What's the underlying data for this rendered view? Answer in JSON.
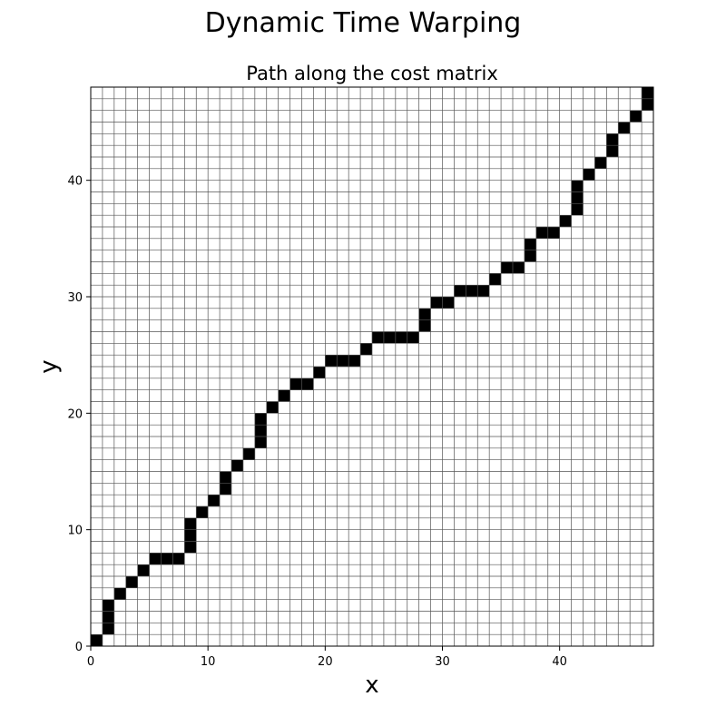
{
  "figure": {
    "title": "Dynamic Time Warping"
  },
  "chart_data": {
    "type": "heatmap",
    "title": "Path along the cost matrix",
    "xlabel": "x",
    "ylabel": "y",
    "xlim": [
      0,
      48
    ],
    "ylim": [
      0,
      48
    ],
    "xticks": [
      0,
      10,
      20,
      30,
      40
    ],
    "yticks": [
      0,
      10,
      20,
      30,
      40
    ],
    "grid": true,
    "cell_color": "#000000",
    "grid_color": "#555555",
    "path": [
      [
        0,
        0
      ],
      [
        1,
        1
      ],
      [
        1,
        2
      ],
      [
        1,
        3
      ],
      [
        2,
        4
      ],
      [
        3,
        5
      ],
      [
        4,
        6
      ],
      [
        5,
        7
      ],
      [
        6,
        7
      ],
      [
        7,
        7
      ],
      [
        8,
        8
      ],
      [
        8,
        9
      ],
      [
        8,
        10
      ],
      [
        9,
        11
      ],
      [
        10,
        12
      ],
      [
        11,
        13
      ],
      [
        11,
        14
      ],
      [
        12,
        15
      ],
      [
        13,
        16
      ],
      [
        14,
        17
      ],
      [
        14,
        18
      ],
      [
        14,
        19
      ],
      [
        15,
        20
      ],
      [
        16,
        21
      ],
      [
        17,
        22
      ],
      [
        18,
        22
      ],
      [
        19,
        23
      ],
      [
        20,
        24
      ],
      [
        21,
        24
      ],
      [
        22,
        24
      ],
      [
        23,
        25
      ],
      [
        24,
        26
      ],
      [
        25,
        26
      ],
      [
        26,
        26
      ],
      [
        27,
        26
      ],
      [
        28,
        27
      ],
      [
        28,
        28
      ],
      [
        29,
        29
      ],
      [
        30,
        29
      ],
      [
        31,
        30
      ],
      [
        32,
        30
      ],
      [
        33,
        30
      ],
      [
        34,
        31
      ],
      [
        35,
        32
      ],
      [
        36,
        32
      ],
      [
        37,
        33
      ],
      [
        37,
        34
      ],
      [
        38,
        35
      ],
      [
        39,
        35
      ],
      [
        40,
        36
      ],
      [
        41,
        37
      ],
      [
        41,
        38
      ],
      [
        41,
        39
      ],
      [
        42,
        40
      ],
      [
        43,
        41
      ],
      [
        44,
        42
      ],
      [
        44,
        43
      ],
      [
        45,
        44
      ],
      [
        46,
        45
      ],
      [
        47,
        46
      ],
      [
        47,
        47
      ]
    ]
  }
}
